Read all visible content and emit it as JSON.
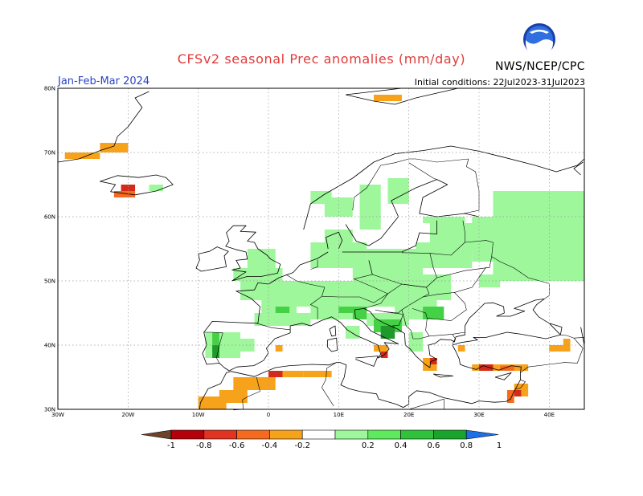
{
  "header": {
    "title": "CFSv2 seasonal Prec anomalies (mm/day)",
    "season": "Jan-Feb-Mar 2024",
    "initial_conditions": "Initial conditions: 22Jul2023-31Jul2023",
    "organization": "NWS/NCEP/CPC",
    "logo_text": "NOAA"
  },
  "map": {
    "lat_labels": [
      "80N",
      "70N",
      "60N",
      "50N",
      "40N",
      "30N"
    ],
    "lon_labels": [
      "30W",
      "20W",
      "10W",
      "0",
      "10E",
      "20E",
      "30E",
      "40E"
    ],
    "extent": {
      "lon_min": -30,
      "lon_max": 45,
      "lat_min": 30,
      "lat_max": 80
    },
    "colors": {
      "wet_light": "#9ef79b",
      "wet_mid": "#45d145",
      "wet_dark": "#1f9a2a",
      "dry_light": "#f7a21b",
      "dry_mid": "#f56a1e",
      "dry_dark": "#d42a1a",
      "coast": "#000000",
      "grid": "#999999"
    }
  },
  "colorbar": {
    "labels": [
      "-1",
      "-0.8",
      "-0.6",
      "-0.4",
      "-0.2",
      "0.2",
      "0.4",
      "0.6",
      "0.8",
      "1"
    ],
    "colors": [
      "#6b4429",
      "#b4000a",
      "#e03322",
      "#f56a1e",
      "#f7a21b",
      "#ffffff",
      "#9ef79b",
      "#5dea5d",
      "#2fc23a",
      "#19a52b",
      "#1d6fe6"
    ]
  }
}
